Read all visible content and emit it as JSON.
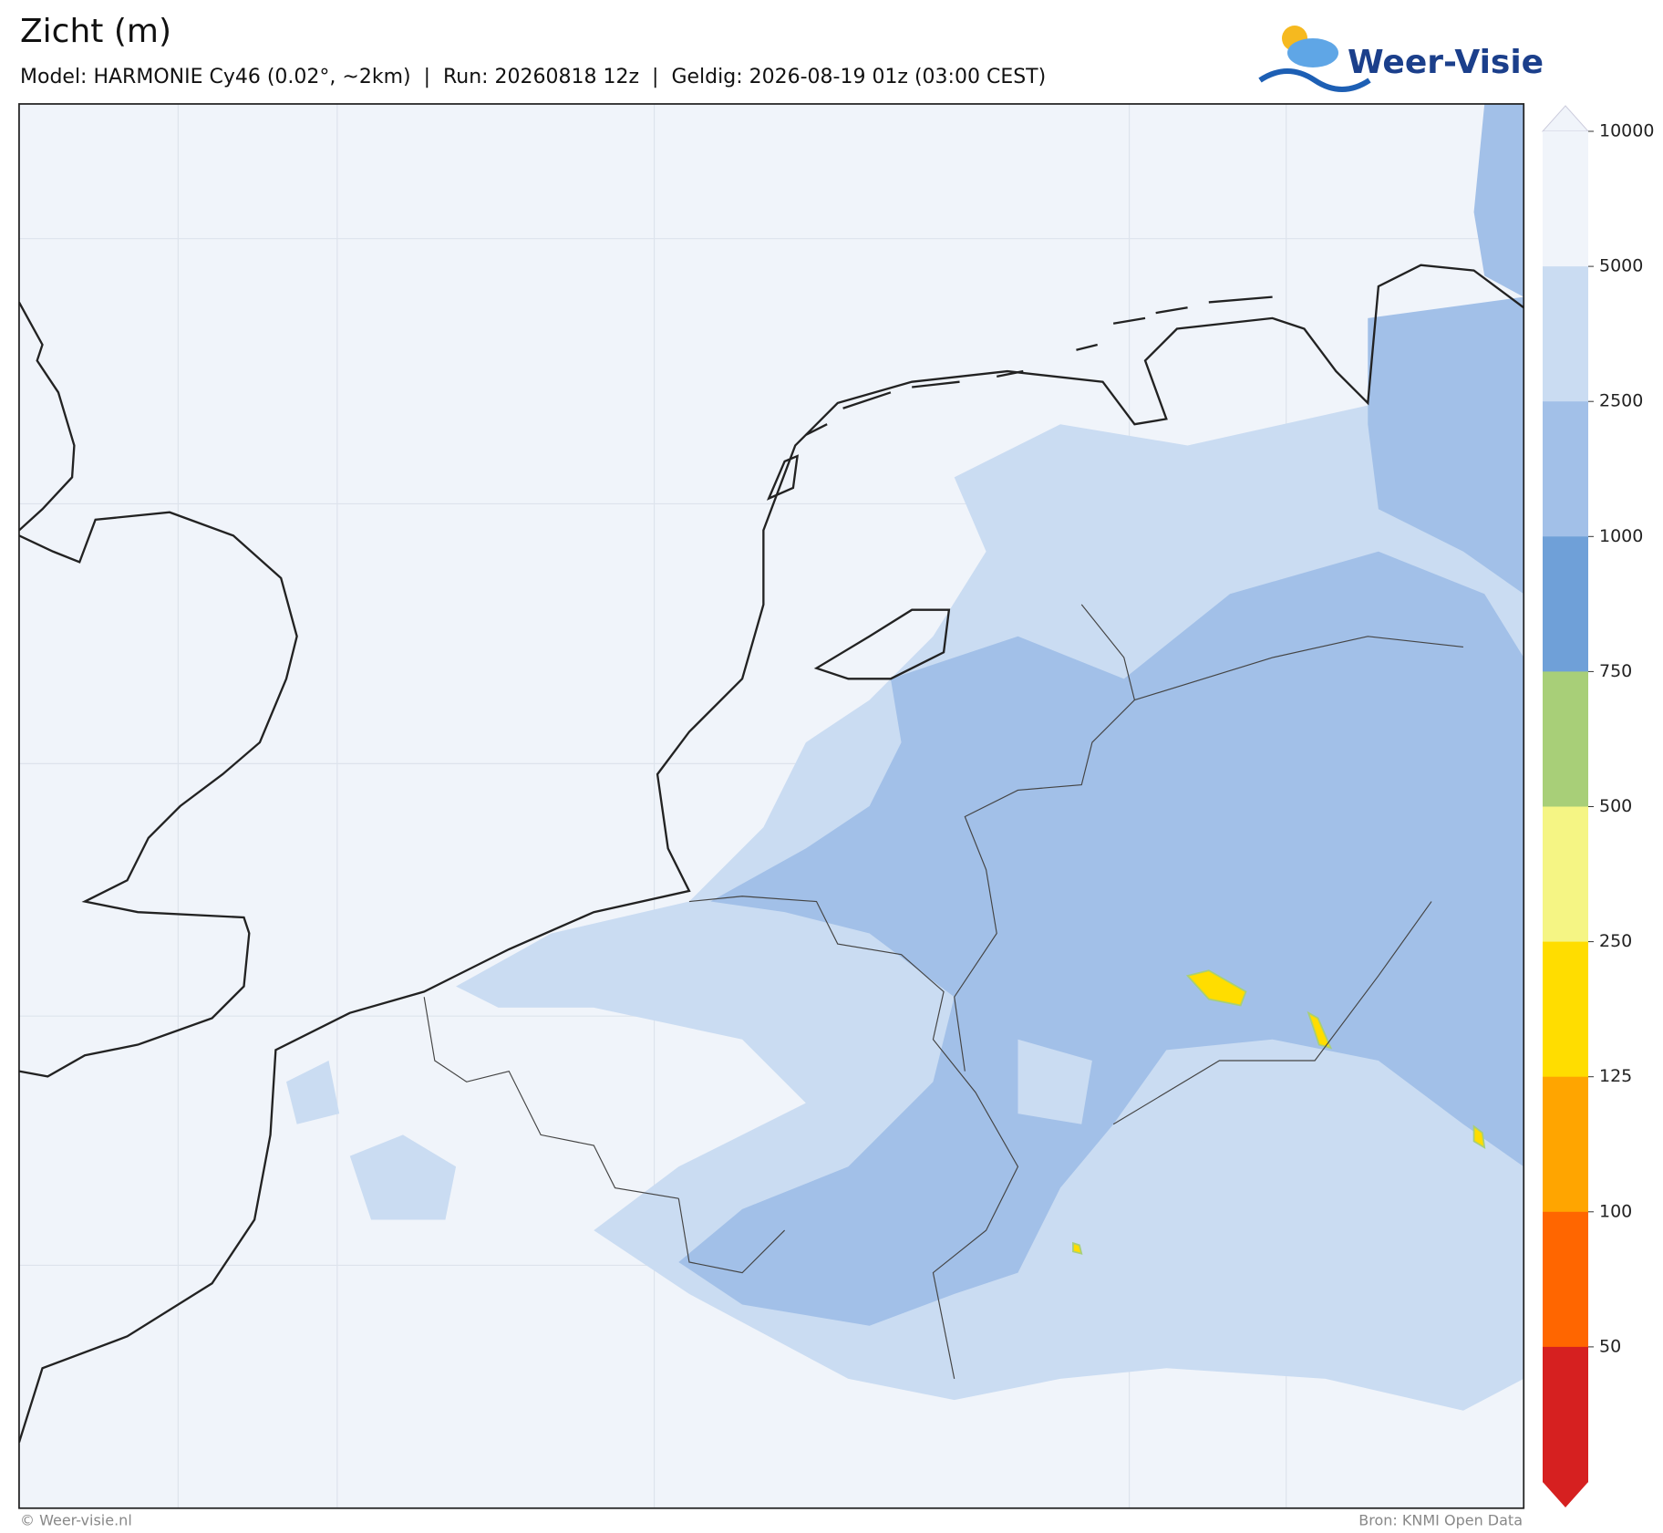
{
  "header": {
    "title": "Zicht (m)",
    "subtitle": "Model: HARMONIE Cy46 (0.02°, ~2km)  |  Run: 20260818 12z  |  Geldig: 2026-08-19 01z (03:00 CEST)"
  },
  "logo": {
    "text": "Weer-Visie"
  },
  "colorbar": {
    "ticks": [
      10000,
      5000,
      2500,
      1000,
      750,
      500,
      250,
      125,
      100,
      50
    ],
    "colors": [
      "#f0f4fa",
      "#f0f4fa",
      "#cadcf2",
      "#a2c0e8",
      "#6fa0d8",
      "#a8cf78",
      "#f5f584",
      "#ffdd00",
      "#ffa500",
      "#ff6600",
      "#d62020",
      "#d62020"
    ]
  },
  "footer": {
    "left": "© Weer-visie.nl",
    "right": "Bron: KNMI Open Data"
  }
}
